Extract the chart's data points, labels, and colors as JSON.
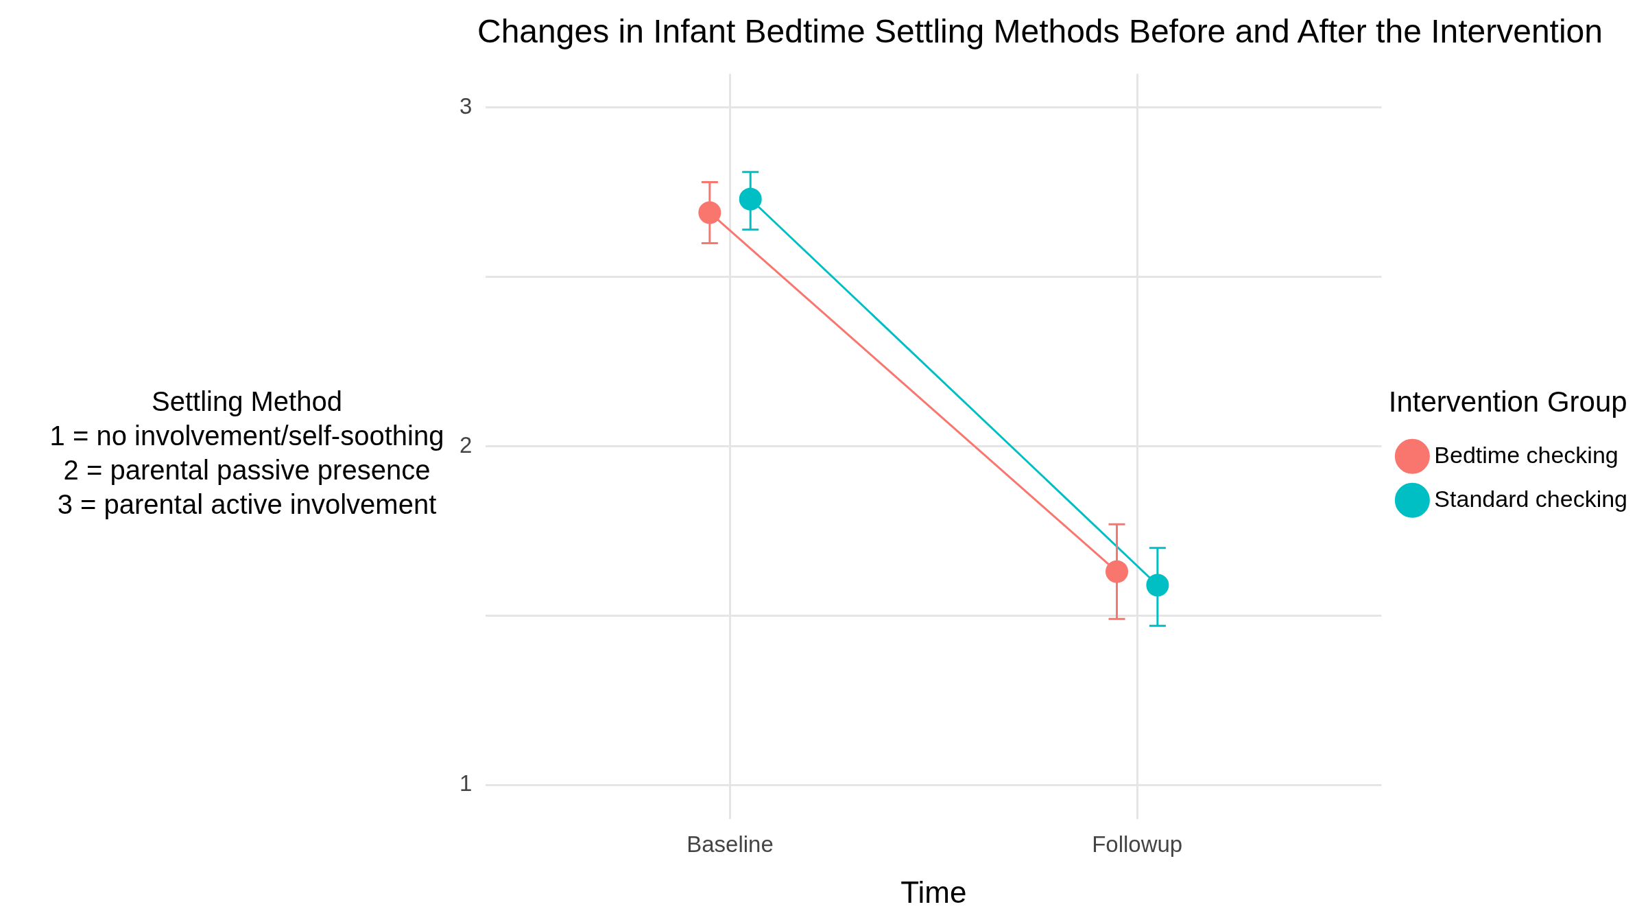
{
  "chart_data": {
    "type": "line",
    "title": "Changes in Infant Bedtime Settling Methods Before and After the Intervention",
    "xlabel": "Time",
    "ylabel": "Settling Method\n1 = no involvement/self-soothing\n2 = parental passive presence\n3 = parental active involvement",
    "legend_title": "Intervention Group",
    "categories": [
      "Baseline",
      "Followup"
    ],
    "series": [
      {
        "name": "Bedtime checking",
        "color": "#f8766d",
        "values": [
          2.69,
          1.63
        ],
        "errors": [
          [
            2.6,
            2.78
          ],
          [
            1.49,
            1.77
          ]
        ]
      },
      {
        "name": "Standard checking",
        "color": "#00bfc4",
        "values": [
          2.73,
          1.59
        ],
        "errors": [
          [
            2.64,
            2.81
          ],
          [
            1.47,
            1.7
          ]
        ]
      }
    ],
    "ylim": [
      0.9,
      3.1
    ],
    "yticks": [
      1,
      {
        "value": 1.5,
        "label": null
      },
      2,
      {
        "value": 2.5,
        "label": null
      },
      3
    ],
    "grid": true,
    "legend": "right",
    "marker": "circle",
    "line_style": "solid"
  }
}
